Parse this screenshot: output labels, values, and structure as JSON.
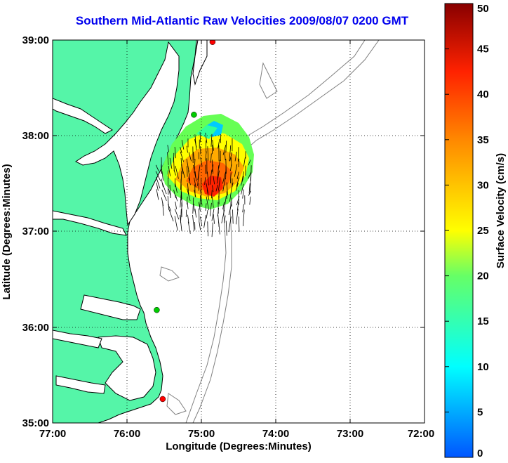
{
  "title": "Southern Mid-Atlantic Raw Velocities 2009/08/07 0200 GMT",
  "map": {
    "lon_range": [
      -77,
      -72
    ],
    "lat_range": [
      35,
      39
    ],
    "x_ticks": [
      "77:00",
      "76:00",
      "75:00",
      "74:00",
      "73:00",
      "72:00"
    ],
    "y_ticks": [
      "39:00",
      "38:00",
      "37:00",
      "36:00",
      "35:00"
    ],
    "xlabel": "Longitude (Degrees:Minutes)",
    "ylabel": "Latitude (Degrees:Minutes)",
    "land_color": "#55f5a8",
    "coast_color": "#000000",
    "bathymetry_color": "#808080",
    "grid": "dotted"
  },
  "colorbar": {
    "label": "Surface Velocity (cm/s)",
    "min": 0,
    "max": 50,
    "ticks": [
      "0",
      "5",
      "10",
      "15",
      "20",
      "25",
      "30",
      "35",
      "40",
      "45",
      "50"
    ],
    "colormap": "jet"
  },
  "stations": [
    {
      "lon": -74.85,
      "lat": 38.98,
      "color": "#ff0000"
    },
    {
      "lon": -75.1,
      "lat": 38.22,
      "color": "#00cc00"
    },
    {
      "lon": -75.6,
      "lat": 36.18,
      "color": "#00cc00"
    },
    {
      "lon": -75.52,
      "lat": 35.25,
      "color": "#ff0000"
    }
  ],
  "velocity_field": {
    "region_center": {
      "lon": -74.95,
      "lat": 37.55
    },
    "speed_range": [
      8,
      45
    ],
    "predominant_direction": "south"
  }
}
